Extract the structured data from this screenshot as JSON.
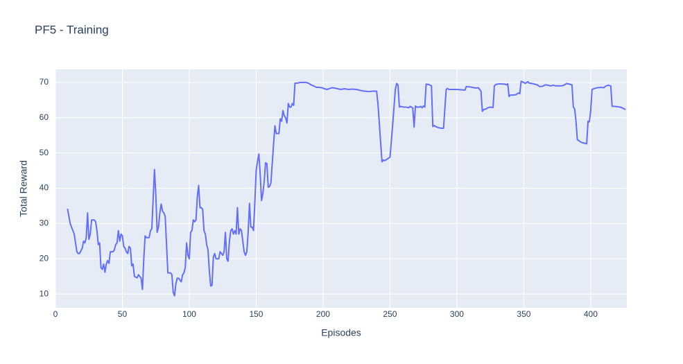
{
  "chart_data": {
    "type": "line",
    "title": "PF5 - Training",
    "x_label": "Episodes",
    "y_label": "Total Reward",
    "color": "#636efa",
    "grid": true,
    "xlim": [
      0,
      427
    ],
    "ylim": [
      6.1,
      73.7
    ],
    "xticks": [
      0,
      50,
      100,
      150,
      200,
      250,
      300,
      350,
      400
    ],
    "yticks": [
      10,
      20,
      30,
      40,
      50,
      60,
      70
    ],
    "x": [
      9,
      11,
      13,
      14,
      16,
      17,
      18,
      20,
      21,
      22,
      23,
      24,
      25,
      26,
      27,
      29,
      30,
      31,
      32,
      33,
      34,
      35,
      36,
      37,
      38,
      39,
      40,
      41,
      43,
      44,
      45,
      46,
      47,
      48,
      49,
      50,
      51,
      52,
      53,
      54,
      55,
      56,
      57,
      58,
      59,
      61,
      62,
      63,
      64,
      65,
      66,
      67,
      68,
      70,
      71,
      72,
      73,
      74,
      75,
      76,
      77,
      78,
      79,
      80,
      81,
      82,
      83,
      84,
      86,
      87,
      88,
      89,
      90,
      91,
      92,
      93,
      94,
      95,
      96,
      97,
      98,
      99,
      100,
      101,
      102,
      103,
      104,
      105,
      106,
      107,
      108,
      109,
      110,
      111,
      112,
      113,
      114,
      115,
      116,
      117,
      118,
      119,
      120,
      122,
      123,
      124,
      125,
      126,
      127,
      128,
      129,
      130,
      131,
      132,
      133,
      134,
      135,
      136,
      137,
      138,
      139,
      140,
      141,
      142,
      143,
      144,
      145,
      146,
      147,
      148,
      149,
      150,
      151,
      152,
      153,
      154,
      155,
      156,
      157,
      158,
      159,
      160,
      161,
      162,
      163,
      164,
      165,
      167,
      168,
      169,
      170,
      171,
      172,
      173,
      174,
      175,
      176,
      177,
      178,
      179,
      181,
      183,
      187,
      189,
      191,
      193,
      195,
      197,
      199,
      201,
      203,
      205,
      207,
      210,
      213,
      216,
      219,
      222,
      225,
      228,
      231,
      234,
      237,
      240,
      241,
      243,
      244,
      245,
      246,
      248,
      250,
      252,
      254,
      255,
      256,
      257,
      258,
      260,
      262,
      264,
      265,
      266,
      267,
      268,
      269,
      270,
      272,
      273,
      274,
      275,
      276,
      277,
      279,
      281,
      282,
      283,
      284,
      286,
      288,
      290,
      292,
      293,
      294,
      300,
      306,
      307,
      310,
      314,
      316,
      318,
      319,
      320,
      322,
      323,
      325,
      327,
      328,
      329,
      332,
      336,
      337,
      338,
      339,
      340,
      342,
      344,
      346,
      347,
      348,
      350,
      351,
      353,
      354,
      356,
      358,
      360,
      362,
      364,
      366,
      368,
      370,
      372,
      374,
      376,
      378,
      380,
      382,
      385,
      386,
      387,
      388,
      389,
      390,
      391,
      393,
      395,
      397,
      398,
      399,
      400,
      401,
      403,
      405,
      408,
      410,
      411,
      413,
      415,
      416,
      418,
      422,
      424,
      426
    ],
    "values": [
      34.2,
      30,
      28,
      27,
      22,
      21.5,
      21.5,
      23,
      25,
      24.5,
      26,
      33,
      25.5,
      27,
      31,
      31,
      30.5,
      28,
      24,
      24.5,
      17.5,
      17,
      18.5,
      16.2,
      18.5,
      19.5,
      18.7,
      22,
      22,
      22.5,
      24,
      24.5,
      28,
      25,
      27,
      26.5,
      23.5,
      23,
      22,
      21.5,
      23.5,
      23,
      18,
      18.5,
      15,
      14.6,
      15.5,
      15,
      14.5,
      11.3,
      20,
      26.5,
      26,
      26,
      28,
      28.5,
      37,
      45.3,
      38,
      27.5,
      29,
      33,
      35.5,
      33.5,
      33,
      32,
      24,
      16,
      16,
      15.5,
      10.5,
      9.5,
      13,
      14.5,
      14.5,
      14,
      13.5,
      15.5,
      16,
      17.5,
      24.5,
      21,
      20,
      27.5,
      28,
      31,
      30.5,
      31,
      37.5,
      40.8,
      34.5,
      34.5,
      34,
      28,
      27,
      24,
      22.5,
      16.5,
      12.3,
      12.5,
      20.5,
      21.5,
      20,
      20,
      22,
      21.5,
      21,
      22,
      27.5,
      20,
      19.3,
      25,
      28,
      28.5,
      27,
      28,
      27,
      34.5,
      27,
      28.5,
      28,
      25,
      22,
      21,
      22,
      27.5,
      35.7,
      29,
      29,
      28,
      36,
      45,
      47.7,
      49.7,
      44,
      36.5,
      38.5,
      42,
      47.2,
      47,
      40.3,
      40.5,
      41.5,
      47,
      52.5,
      57.7,
      55.5,
      55.5,
      59.7,
      59,
      62,
      60.5,
      60,
      58.5,
      64,
      63,
      63,
      64,
      63.5,
      69.8,
      69.8,
      70,
      70,
      69.8,
      69.3,
      69,
      68.6,
      68.6,
      68.5,
      68.2,
      68,
      68.3,
      68.5,
      68.3,
      68,
      68.2,
      68,
      68.1,
      68,
      67.7,
      67.5,
      67.4,
      67.5,
      67.5,
      64,
      53,
      47.5,
      48,
      47.8,
      48.3,
      48.8,
      58,
      68,
      69.7,
      69.3,
      63,
      63.2,
      63,
      63,
      62.8,
      63.2,
      63,
      62.8,
      57.3,
      63.3,
      63,
      63,
      63.2,
      62.8,
      63.3,
      63,
      69.5,
      69.4,
      69,
      57.5,
      57.8,
      57.5,
      57.2,
      57,
      57,
      68,
      68.3,
      68,
      68,
      67.8,
      68.8,
      68.7,
      68.4,
      68.5,
      67.5,
      61.8,
      62.3,
      62.5,
      62.8,
      63,
      62.9,
      69,
      69.4,
      69.6,
      69.5,
      69.3,
      69.6,
      66,
      66.4,
      66.4,
      66.5,
      67,
      66.8,
      70.3,
      70,
      69.7,
      70.2,
      69.8,
      69.7,
      69.5,
      69.3,
      68.8,
      68.9,
      69.3,
      69.2,
      69,
      69.2,
      69,
      69,
      69,
      69.2,
      69.7,
      69.4,
      69.3,
      63,
      62.5,
      59,
      53.8,
      53.5,
      53,
      52.8,
      52.6,
      59,
      58.8,
      62,
      68,
      68.3,
      68.5,
      68.6,
      68.5,
      68.9,
      69.2,
      69,
      63.2,
      63.2,
      63,
      62.7,
      62.3
    ]
  }
}
